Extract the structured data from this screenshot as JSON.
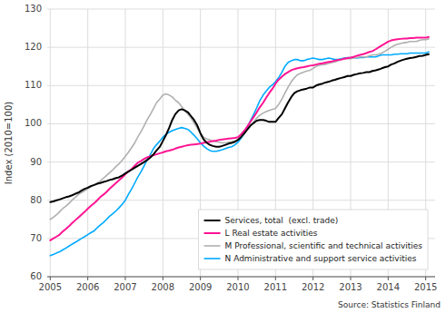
{
  "chart_data": {
    "type": "line",
    "ylabel": "Index (2010=100)",
    "annotations": [
      "Source: Statistics Finland"
    ],
    "ylim": [
      60,
      130
    ],
    "yticks": [
      60,
      70,
      80,
      90,
      100,
      110,
      120,
      130
    ],
    "xlim": [
      2004.92,
      2015.25
    ],
    "xticks": [
      2005,
      2006,
      2007,
      2008,
      2009,
      2010,
      2011,
      2012,
      2013,
      2014,
      2015
    ],
    "grid": true,
    "legend": "lower right",
    "x": [
      2005.0,
      2005.08,
      2005.17,
      2005.25,
      2005.33,
      2005.42,
      2005.5,
      2005.58,
      2005.67,
      2005.75,
      2005.83,
      2005.92,
      2006.0,
      2006.08,
      2006.17,
      2006.25,
      2006.33,
      2006.42,
      2006.5,
      2006.58,
      2006.67,
      2006.75,
      2006.83,
      2006.92,
      2007.0,
      2007.08,
      2007.17,
      2007.25,
      2007.33,
      2007.42,
      2007.5,
      2007.58,
      2007.67,
      2007.75,
      2007.83,
      2007.92,
      2008.0,
      2008.08,
      2008.17,
      2008.25,
      2008.33,
      2008.42,
      2008.5,
      2008.58,
      2008.67,
      2008.75,
      2008.83,
      2008.92,
      2009.0,
      2009.08,
      2009.17,
      2009.25,
      2009.33,
      2009.42,
      2009.5,
      2009.58,
      2009.67,
      2009.75,
      2009.83,
      2009.92,
      2010.0,
      2010.08,
      2010.17,
      2010.25,
      2010.33,
      2010.42,
      2010.5,
      2010.58,
      2010.67,
      2010.75,
      2010.83,
      2010.92,
      2011.0,
      2011.08,
      2011.17,
      2011.25,
      2011.33,
      2011.42,
      2011.5,
      2011.58,
      2011.67,
      2011.75,
      2011.83,
      2011.92,
      2012.0,
      2012.08,
      2012.17,
      2012.25,
      2012.33,
      2012.42,
      2012.5,
      2012.58,
      2012.67,
      2012.75,
      2012.83,
      2012.92,
      2013.0,
      2013.08,
      2013.17,
      2013.25,
      2013.33,
      2013.42,
      2013.5,
      2013.58,
      2013.67,
      2013.75,
      2013.83,
      2013.92,
      2014.0,
      2014.08,
      2014.17,
      2014.25,
      2014.33,
      2014.42,
      2014.5,
      2014.58,
      2014.67,
      2014.75,
      2014.83,
      2014.92,
      2015.0,
      2015.08
    ],
    "series": [
      {
        "name": "Services, total  (excl. trade)",
        "color": "#000000",
        "values": [
          79.5,
          79.7,
          80.0,
          80.2,
          80.5,
          80.8,
          81.0,
          81.3,
          81.7,
          82.0,
          82.5,
          83.0,
          83.3,
          83.7,
          84.0,
          84.3,
          84.5,
          84.8,
          85.0,
          85.3,
          85.5,
          85.8,
          86.0,
          86.5,
          87.0,
          87.5,
          88.0,
          88.5,
          89.0,
          89.5,
          90.0,
          90.5,
          91.2,
          92.0,
          93.0,
          94.0,
          95.5,
          97.0,
          99.0,
          101.0,
          102.5,
          103.5,
          103.8,
          103.5,
          103.0,
          102.0,
          101.0,
          99.5,
          97.5,
          96.0,
          95.0,
          94.5,
          94.2,
          94.0,
          94.0,
          94.2,
          94.5,
          94.8,
          95.0,
          95.3,
          95.8,
          96.5,
          97.5,
          98.5,
          99.5,
          100.2,
          100.8,
          101.0,
          101.0,
          100.8,
          100.5,
          100.5,
          100.5,
          101.5,
          102.5,
          104.0,
          105.5,
          107.0,
          108.0,
          108.5,
          108.8,
          109.0,
          109.2,
          109.5,
          109.5,
          110.0,
          110.3,
          110.5,
          110.8,
          111.0,
          111.3,
          111.5,
          111.8,
          112.0,
          112.2,
          112.5,
          112.5,
          112.8,
          113.0,
          113.2,
          113.3,
          113.5,
          113.5,
          113.8,
          114.0,
          114.2,
          114.5,
          114.8,
          115.0,
          115.5,
          115.8,
          116.2,
          116.5,
          116.8,
          117.0,
          117.2,
          117.3,
          117.5,
          117.7,
          117.8,
          118.0,
          118.2
        ]
      },
      {
        "name": "L Real estate activities",
        "color": "#ff1493",
        "values": [
          69.5,
          70.0,
          70.5,
          71.0,
          71.8,
          72.5,
          73.2,
          74.0,
          74.8,
          75.5,
          76.2,
          77.0,
          77.8,
          78.5,
          79.2,
          80.0,
          80.8,
          81.5,
          82.2,
          83.0,
          83.8,
          84.5,
          85.2,
          86.0,
          86.8,
          87.5,
          88.2,
          89.0,
          89.8,
          90.3,
          90.8,
          91.2,
          91.5,
          91.8,
          92.0,
          92.3,
          92.5,
          92.8,
          93.0,
          93.2,
          93.5,
          93.8,
          94.0,
          94.2,
          94.4,
          94.5,
          94.6,
          94.7,
          94.8,
          95.0,
          95.2,
          95.3,
          95.5,
          95.6,
          95.8,
          95.9,
          96.0,
          96.1,
          96.2,
          96.3,
          96.5,
          97.2,
          98.2,
          99.3,
          100.5,
          101.8,
          103.0,
          104.3,
          105.5,
          106.8,
          108.0,
          109.2,
          110.5,
          111.5,
          112.3,
          113.0,
          113.5,
          114.0,
          114.3,
          114.5,
          114.7,
          114.8,
          115.0,
          115.2,
          115.3,
          115.5,
          115.7,
          115.8,
          116.0,
          116.2,
          116.3,
          116.5,
          116.7,
          116.8,
          117.0,
          117.2,
          117.3,
          117.5,
          117.8,
          118.0,
          118.2,
          118.5,
          118.8,
          119.0,
          119.5,
          120.0,
          120.5,
          121.0,
          121.5,
          121.8,
          122.0,
          122.1,
          122.2,
          122.3,
          122.3,
          122.4,
          122.4,
          122.5,
          122.5,
          122.5,
          122.5,
          122.7
        ]
      },
      {
        "name": "M Professional, scientific and technical activities",
        "color": "#b0b0b0",
        "values": [
          75.0,
          75.5,
          76.2,
          77.0,
          77.8,
          78.5,
          79.2,
          80.0,
          80.8,
          81.5,
          82.0,
          82.5,
          83.0,
          83.5,
          84.0,
          84.5,
          85.0,
          85.8,
          86.5,
          87.2,
          88.0,
          88.8,
          89.5,
          90.5,
          91.5,
          92.5,
          93.8,
          95.0,
          96.5,
          98.0,
          99.5,
          101.0,
          102.5,
          104.0,
          105.5,
          106.5,
          107.5,
          107.8,
          107.5,
          107.0,
          106.2,
          105.5,
          104.5,
          103.5,
          102.5,
          101.5,
          100.2,
          98.8,
          97.5,
          96.5,
          96.0,
          95.8,
          95.5,
          95.3,
          95.2,
          95.0,
          95.0,
          95.2,
          95.3,
          95.5,
          95.8,
          96.5,
          97.5,
          98.5,
          99.5,
          100.5,
          101.5,
          102.2,
          102.8,
          103.2,
          103.5,
          103.8,
          104.0,
          105.0,
          106.5,
          108.0,
          109.5,
          111.0,
          112.0,
          112.8,
          113.2,
          113.5,
          113.8,
          114.0,
          114.5,
          115.0,
          115.3,
          115.5,
          115.5,
          115.8,
          116.0,
          116.2,
          116.5,
          116.8,
          117.0,
          117.0,
          117.0,
          117.2,
          117.3,
          117.5,
          117.5,
          117.5,
          117.8,
          118.0,
          118.0,
          118.2,
          118.5,
          119.0,
          119.5,
          120.0,
          120.5,
          120.8,
          121.0,
          121.2,
          121.3,
          121.5,
          121.5,
          121.5,
          121.8,
          122.0,
          122.0,
          122.2
        ]
      },
      {
        "name": "N Administrative and support service activities",
        "color": "#00aaff",
        "values": [
          65.5,
          65.8,
          66.2,
          66.5,
          67.0,
          67.5,
          68.0,
          68.5,
          69.0,
          69.5,
          70.0,
          70.5,
          71.0,
          71.5,
          72.0,
          72.8,
          73.5,
          74.2,
          75.0,
          75.8,
          76.5,
          77.2,
          78.0,
          79.0,
          80.0,
          81.5,
          83.0,
          84.5,
          86.0,
          87.5,
          89.0,
          90.5,
          92.0,
          93.5,
          94.5,
          95.5,
          96.5,
          97.2,
          97.8,
          98.2,
          98.5,
          98.8,
          99.0,
          98.8,
          98.5,
          97.8,
          97.0,
          96.0,
          95.0,
          94.2,
          93.5,
          93.0,
          92.8,
          92.8,
          93.0,
          93.2,
          93.5,
          93.8,
          94.0,
          94.5,
          95.2,
          96.2,
          97.5,
          99.0,
          100.8,
          102.5,
          104.2,
          106.0,
          107.5,
          108.5,
          109.5,
          110.2,
          111.0,
          112.0,
          113.5,
          115.0,
          116.0,
          116.5,
          116.8,
          116.8,
          116.5,
          116.5,
          116.8,
          117.0,
          117.2,
          117.0,
          116.8,
          116.8,
          117.0,
          117.2,
          117.0,
          116.8,
          116.8,
          117.0,
          117.2,
          117.3,
          117.3,
          117.3,
          117.2,
          117.3,
          117.3,
          117.5,
          117.5,
          117.5,
          117.5,
          117.8,
          118.0,
          118.0,
          118.0,
          118.0,
          118.2,
          118.2,
          118.3,
          118.3,
          118.3,
          118.5,
          118.5,
          118.5,
          118.5,
          118.5,
          118.5,
          118.8
        ]
      }
    ]
  }
}
